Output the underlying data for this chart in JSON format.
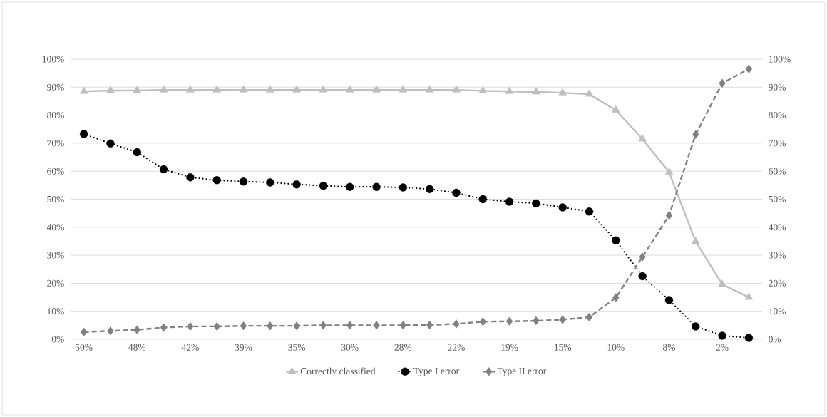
{
  "chart_data": {
    "type": "line",
    "categories": [
      "50%",
      null,
      "48%",
      null,
      "42%",
      null,
      "39%",
      null,
      "35%",
      null,
      "30%",
      null,
      "28%",
      null,
      "22%",
      null,
      "19%",
      null,
      "15%",
      null,
      "10%",
      null,
      "8%",
      null,
      "2%",
      null
    ],
    "series": [
      {
        "name": "Correctly classified",
        "color": "#bfbfbf",
        "marker": "triangle",
        "line_style": "solid",
        "values": [
          88.5,
          88.8,
          88.8,
          89,
          89,
          89,
          89,
          89,
          89,
          89,
          89,
          89,
          89,
          89,
          89,
          88.7,
          88.5,
          88.3,
          88.0,
          87.5,
          81.8,
          71.5,
          59.7,
          34.9,
          19.6,
          15.0
        ]
      },
      {
        "name": "Type I error",
        "color": "#000000",
        "marker": "circle",
        "line_style": "dotted",
        "values": [
          73.3,
          69.9,
          66.8,
          60.7,
          57.8,
          56.8,
          56.3,
          56.0,
          55.3,
          54.8,
          54.4,
          54.4,
          54.2,
          53.6,
          52.3,
          50.0,
          49.1,
          48.5,
          47.1,
          45.6,
          35.3,
          22.5,
          14.0,
          4.6,
          1.3,
          0.5
        ]
      },
      {
        "name": "Type II error",
        "color": "#808080",
        "marker": "diamond",
        "line_style": "dashed",
        "values": [
          2.6,
          3.0,
          3.4,
          4.2,
          4.6,
          4.6,
          4.8,
          4.8,
          4.8,
          5.0,
          5.0,
          5.0,
          5.0,
          5.1,
          5.5,
          6.3,
          6.4,
          6.6,
          7.0,
          7.9,
          14.9,
          29.4,
          44.2,
          73.1,
          91.4,
          96.5
        ]
      }
    ],
    "ylim": [
      0,
      100
    ],
    "yticks": [
      {
        "value": 0,
        "label": "0%"
      },
      {
        "value": 10,
        "label": "10%"
      },
      {
        "value": 20,
        "label": "20%"
      },
      {
        "value": 30,
        "label": "30%"
      },
      {
        "value": 40,
        "label": "40%"
      },
      {
        "value": 50,
        "label": "50%"
      },
      {
        "value": 60,
        "label": "60%"
      },
      {
        "value": 70,
        "label": "70%"
      },
      {
        "value": 80,
        "label": "80%"
      },
      {
        "value": 90,
        "label": "90%"
      },
      {
        "value": 100,
        "label": "100%"
      }
    ],
    "y2lim": [
      0,
      100
    ],
    "y2ticks": [
      {
        "value": 0,
        "label": "0%"
      },
      {
        "value": 10,
        "label": "10%"
      },
      {
        "value": 20,
        "label": "20%"
      },
      {
        "value": 30,
        "label": "30%"
      },
      {
        "value": 40,
        "label": "40%"
      },
      {
        "value": 50,
        "label": "50%"
      },
      {
        "value": 60,
        "label": "60%"
      },
      {
        "value": 70,
        "label": "70%"
      },
      {
        "value": 80,
        "label": "80%"
      },
      {
        "value": 90,
        "label": "90%"
      },
      {
        "value": 100,
        "label": "100%"
      }
    ],
    "grid": "y",
    "legend": "bottom"
  }
}
